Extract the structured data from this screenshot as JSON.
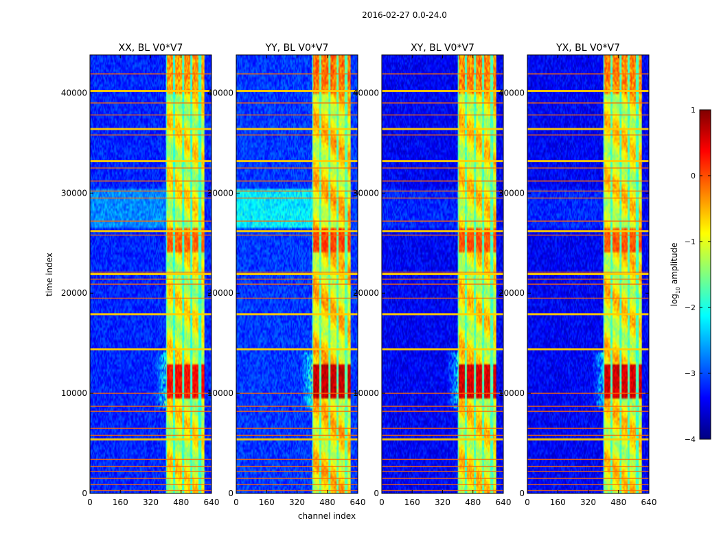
{
  "chart_data": {
    "type": "heatmap",
    "suptitle": "2016-02-27 0.0-24.0",
    "xlabel": "channel index",
    "ylabel": "time index",
    "xlim": [
      0,
      640
    ],
    "ylim": [
      0,
      43800
    ],
    "xticks": [
      0,
      160,
      320,
      480,
      640
    ],
    "yticks": [
      0,
      10000,
      20000,
      30000,
      40000
    ],
    "colormap": "jet",
    "colorbar": {
      "label": "log",
      "label_subscript": "10",
      "label_suffix": " amplitude",
      "range": [
        -4,
        1
      ],
      "ticks": [
        -4,
        -3,
        -2,
        -1,
        0,
        1
      ],
      "tick_labels": [
        "−4",
        "−3",
        "−2",
        "−1",
        "0",
        "1"
      ],
      "placement": "right"
    },
    "panels": [
      {
        "title": "XX, BL V0*V7",
        "background_level": -3.2,
        "band_level": -1.0,
        "band_peak": 0.3,
        "burst_peak": 0.6,
        "left_haze": 0.5
      },
      {
        "title": "YY, BL V0*V7",
        "background_level": -3.1,
        "band_level": -0.8,
        "band_peak": 0.5,
        "burst_peak": 0.9,
        "left_haze": 0.9
      },
      {
        "title": "XY, BL V0*V7",
        "background_level": -3.4,
        "band_level": -0.9,
        "band_peak": 0.4,
        "burst_peak": 0.8,
        "left_haze": 0.2
      },
      {
        "title": "YX, BL V0*V7",
        "background_level": -3.4,
        "band_level": -0.9,
        "band_peak": 0.4,
        "burst_peak": 0.8,
        "left_haze": 0.2
      }
    ],
    "features": {
      "signal_band_channels": [
        400,
        600
      ],
      "signal_band_subchannels": [
        [
          405,
          437
        ],
        [
          450,
          483
        ],
        [
          495,
          527
        ],
        [
          540,
          572
        ],
        [
          585,
          600
        ]
      ],
      "strong_burst_time": [
        9500,
        13000
      ],
      "moderate_burst_time": [
        24000,
        26500
      ],
      "haze_time": [
        26500,
        30500
      ],
      "rfi_line_times": [
        300,
        900,
        1500,
        2200,
        2700,
        3400,
        5400,
        5800,
        6500,
        8200,
        8700,
        10000,
        14400,
        17900,
        19500,
        20900,
        21400,
        21900,
        22100,
        25800,
        26200,
        27200,
        29500,
        30200,
        31200,
        32500,
        33200,
        35800,
        36400,
        37800,
        39000,
        40200,
        41900
      ],
      "strong_rfi_line_times": [
        5400,
        14400,
        17900,
        21900,
        26200,
        33200,
        36400,
        40200
      ]
    }
  }
}
